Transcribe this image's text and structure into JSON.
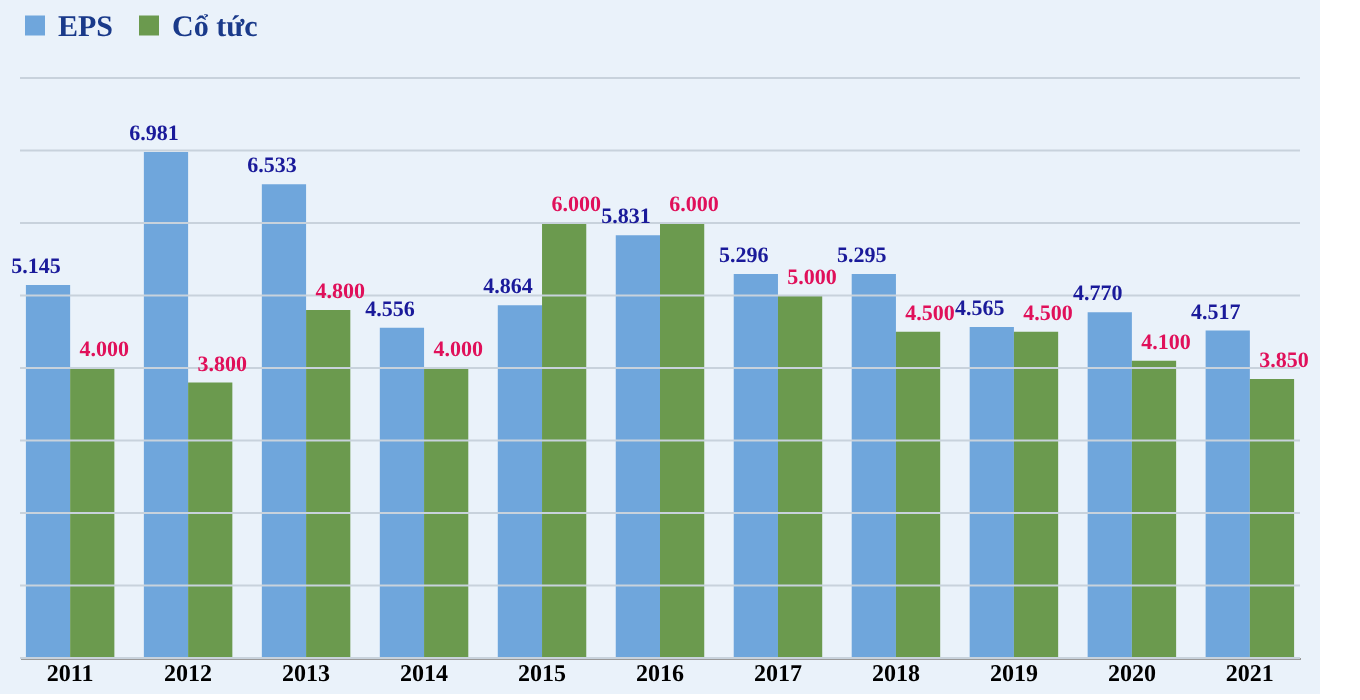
{
  "chart_data": {
    "type": "bar",
    "categories": [
      "2011",
      "2012",
      "2013",
      "2014",
      "2015",
      "2016",
      "2017",
      "2018",
      "2019",
      "2020",
      "2021"
    ],
    "series": [
      {
        "name": "EPS",
        "color": "#6fa6dc",
        "values": [
          5145,
          6981,
          6533,
          4556,
          4864,
          5831,
          5296,
          5295,
          4565,
          4770,
          4517
        ],
        "value_labels": [
          "5.145",
          "6.981",
          "6.533",
          "4.556",
          "4.864",
          "5.831",
          "5.296",
          "5.295",
          "4.565",
          "4.770",
          "4.517"
        ]
      },
      {
        "name": "Cổ tức",
        "color": "#6b9a4e",
        "values": [
          4000,
          3800,
          4800,
          4000,
          6000,
          6000,
          5000,
          4500,
          4500,
          4100,
          3850
        ],
        "value_labels": [
          "4.000",
          "3.800",
          "4.800",
          "4.000",
          "6.000",
          "6.000",
          "5.000",
          "4.500",
          "4.500",
          "4.100",
          "3.850"
        ]
      }
    ],
    "ylim": [
      0,
      8000
    ],
    "yticks": [
      {
        "value": 0,
        "label": null
      },
      {
        "value": 1000,
        "label": null
      },
      {
        "value": 2000,
        "label": null
      },
      {
        "value": 3000,
        "label": null
      },
      {
        "value": 4000,
        "label": null
      },
      {
        "value": 5000,
        "label": null
      },
      {
        "value": 6000,
        "label": null
      },
      {
        "value": 7000,
        "label": null
      },
      {
        "value": 8000,
        "label": null
      }
    ],
    "tick_labels": "x",
    "grid": "y",
    "legend": "top"
  }
}
